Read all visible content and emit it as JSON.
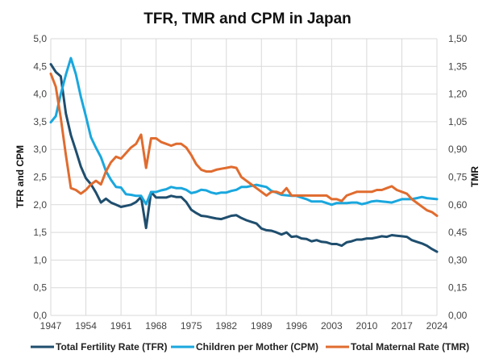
{
  "chart_data": {
    "type": "line",
    "title": "TFR, TMR and CPM in Japan",
    "xlabel": "",
    "ylabel": "TFR and CPM",
    "y2label": "TMR",
    "xlim": [
      1947,
      2024
    ],
    "ylim": [
      0,
      5
    ],
    "y2lim": [
      0,
      1.5
    ],
    "x_ticks": [
      "1947",
      "1954",
      "1961",
      "1968",
      "1975",
      "1982",
      "1989",
      "1996",
      "2003",
      "2010",
      "2017",
      "2024"
    ],
    "y_ticks": [
      "0,0",
      "0,5",
      "1,0",
      "1,5",
      "2,0",
      "2,5",
      "3,0",
      "3,5",
      "4,0",
      "4,5",
      "5,0"
    ],
    "y2_ticks": [
      "0,00",
      "0,15",
      "0,30",
      "0,45",
      "0,60",
      "0,75",
      "0,90",
      "1,05",
      "1,20",
      "1,35",
      "1,50"
    ],
    "grid": true,
    "legend_position": "bottom",
    "x": [
      1947,
      1948,
      1949,
      1950,
      1951,
      1952,
      1953,
      1954,
      1955,
      1956,
      1957,
      1958,
      1959,
      1960,
      1961,
      1962,
      1963,
      1964,
      1965,
      1966,
      1967,
      1968,
      1969,
      1970,
      1971,
      1972,
      1973,
      1974,
      1975,
      1976,
      1977,
      1978,
      1979,
      1980,
      1981,
      1982,
      1983,
      1984,
      1985,
      1986,
      1987,
      1988,
      1989,
      1990,
      1991,
      1992,
      1993,
      1994,
      1995,
      1996,
      1997,
      1998,
      1999,
      2000,
      2001,
      2002,
      2003,
      2004,
      2005,
      2006,
      2007,
      2008,
      2009,
      2010,
      2011,
      2012,
      2013,
      2014,
      2015,
      2016,
      2017,
      2018,
      2019,
      2020,
      2021,
      2022,
      2023,
      2024
    ],
    "series": [
      {
        "name": "Total Fertility Rate (TFR)",
        "axis": "left",
        "color": "#1f4e6e",
        "values": [
          4.54,
          4.4,
          4.32,
          3.65,
          3.26,
          2.98,
          2.69,
          2.48,
          2.37,
          2.22,
          2.04,
          2.11,
          2.04,
          2.0,
          1.96,
          1.98,
          2.0,
          2.05,
          2.14,
          1.58,
          2.23,
          2.13,
          2.13,
          2.13,
          2.16,
          2.14,
          2.14,
          2.05,
          1.91,
          1.85,
          1.8,
          1.79,
          1.77,
          1.75,
          1.74,
          1.77,
          1.8,
          1.81,
          1.76,
          1.72,
          1.69,
          1.66,
          1.57,
          1.54,
          1.53,
          1.5,
          1.46,
          1.5,
          1.42,
          1.43,
          1.39,
          1.38,
          1.34,
          1.36,
          1.33,
          1.32,
          1.29,
          1.29,
          1.26,
          1.32,
          1.34,
          1.37,
          1.37,
          1.39,
          1.39,
          1.41,
          1.43,
          1.42,
          1.45,
          1.44,
          1.43,
          1.42,
          1.36,
          1.33,
          1.3,
          1.26,
          1.2,
          1.15
        ]
      },
      {
        "name": "Children per Mother (CPM)",
        "axis": "left",
        "color": "#1aa7de",
        "values": [
          3.49,
          3.6,
          4.0,
          4.35,
          4.65,
          4.36,
          3.95,
          3.6,
          3.22,
          3.03,
          2.86,
          2.61,
          2.45,
          2.32,
          2.31,
          2.19,
          2.18,
          2.16,
          2.16,
          2.01,
          2.23,
          2.23,
          2.26,
          2.28,
          2.32,
          2.3,
          2.3,
          2.27,
          2.21,
          2.23,
          2.27,
          2.26,
          2.22,
          2.2,
          2.22,
          2.22,
          2.25,
          2.27,
          2.32,
          2.32,
          2.34,
          2.36,
          2.34,
          2.32,
          2.25,
          2.22,
          2.18,
          2.17,
          2.16,
          2.16,
          2.13,
          2.1,
          2.06,
          2.06,
          2.06,
          2.03,
          2.0,
          2.03,
          2.03,
          2.03,
          2.04,
          2.04,
          2.01,
          2.03,
          2.06,
          2.07,
          2.06,
          2.05,
          2.04,
          2.07,
          2.1,
          2.1,
          2.1,
          2.12,
          2.14,
          2.12,
          2.11,
          2.1
        ]
      },
      {
        "name": "Total Maternal Rate (TMR)",
        "axis": "right",
        "color": "#e06c2f",
        "values": [
          1.31,
          1.24,
          1.07,
          0.87,
          0.69,
          0.68,
          0.66,
          0.68,
          0.71,
          0.73,
          0.71,
          0.78,
          0.83,
          0.86,
          0.85,
          0.88,
          0.91,
          0.93,
          0.98,
          0.8,
          0.96,
          0.96,
          0.94,
          0.93,
          0.92,
          0.93,
          0.93,
          0.91,
          0.87,
          0.82,
          0.79,
          0.78,
          0.78,
          0.79,
          0.795,
          0.8,
          0.805,
          0.8,
          0.75,
          0.73,
          0.71,
          0.69,
          0.67,
          0.65,
          0.67,
          0.67,
          0.66,
          0.69,
          0.65,
          0.65,
          0.65,
          0.65,
          0.65,
          0.65,
          0.65,
          0.65,
          0.63,
          0.63,
          0.62,
          0.65,
          0.66,
          0.67,
          0.67,
          0.67,
          0.67,
          0.68,
          0.68,
          0.69,
          0.7,
          0.68,
          0.67,
          0.66,
          0.63,
          0.61,
          0.59,
          0.57,
          0.56,
          0.54
        ]
      }
    ]
  }
}
